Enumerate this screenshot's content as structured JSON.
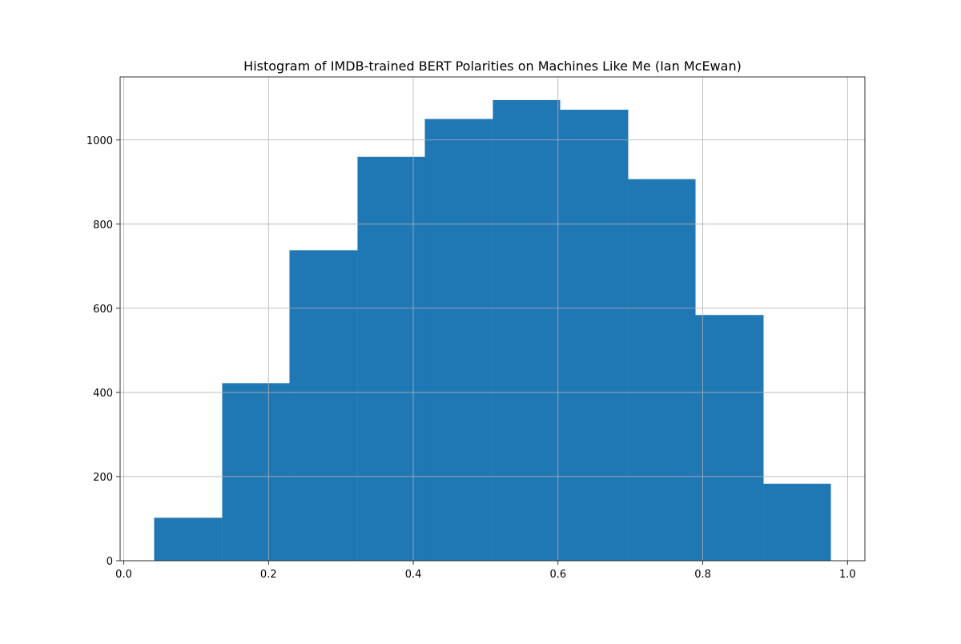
{
  "chart_data": {
    "type": "bar",
    "subtype": "histogram",
    "title": "Histogram of IMDB-trained BERT Polarities on Machines Like Me (Ian McEwan)",
    "xlabel": "",
    "ylabel": "",
    "bins": [
      {
        "x0": 0.042,
        "x1": 0.136,
        "count": 102
      },
      {
        "x0": 0.136,
        "x1": 0.229,
        "count": 422
      },
      {
        "x0": 0.229,
        "x1": 0.323,
        "count": 738
      },
      {
        "x0": 0.323,
        "x1": 0.416,
        "count": 960
      },
      {
        "x0": 0.416,
        "x1": 0.51,
        "count": 1050
      },
      {
        "x0": 0.51,
        "x1": 0.603,
        "count": 1095
      },
      {
        "x0": 0.603,
        "x1": 0.697,
        "count": 1072
      },
      {
        "x0": 0.697,
        "x1": 0.79,
        "count": 907
      },
      {
        "x0": 0.79,
        "x1": 0.884,
        "count": 584
      },
      {
        "x0": 0.884,
        "x1": 0.977,
        "count": 183
      }
    ],
    "xlim": [
      -0.005,
      1.024
    ],
    "ylim": [
      0,
      1150
    ],
    "xticks": [
      0.0,
      0.2,
      0.4,
      0.6,
      0.8,
      1.0
    ],
    "xtick_labels": [
      "0.0",
      "0.2",
      "0.4",
      "0.6",
      "0.8",
      "1.0"
    ],
    "yticks": [
      0,
      200,
      400,
      600,
      800,
      1000
    ],
    "ytick_labels": [
      "0",
      "200",
      "400",
      "600",
      "800",
      "1000"
    ],
    "grid": true,
    "legend": false,
    "bar_color": "#1f77b4",
    "grid_color": "#b0b0b0"
  }
}
